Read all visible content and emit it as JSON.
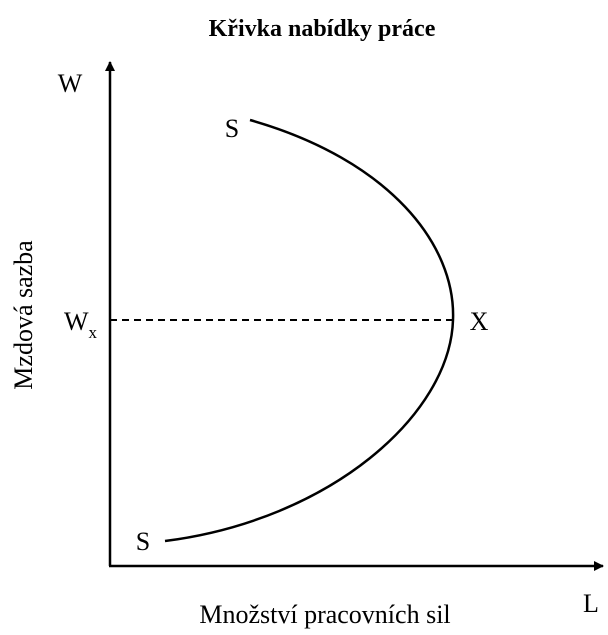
{
  "title": "Křivka nabídky práce",
  "y_axis": {
    "label": "Mzdová sazba",
    "symbol": "W"
  },
  "x_axis": {
    "label": "Množství pracovních sil",
    "symbol": "L"
  },
  "curve": {
    "top_label": "S",
    "bottom_label": "S",
    "turning_point_label": "X"
  },
  "reference_wage": {
    "main": "W",
    "sub": "x"
  }
}
